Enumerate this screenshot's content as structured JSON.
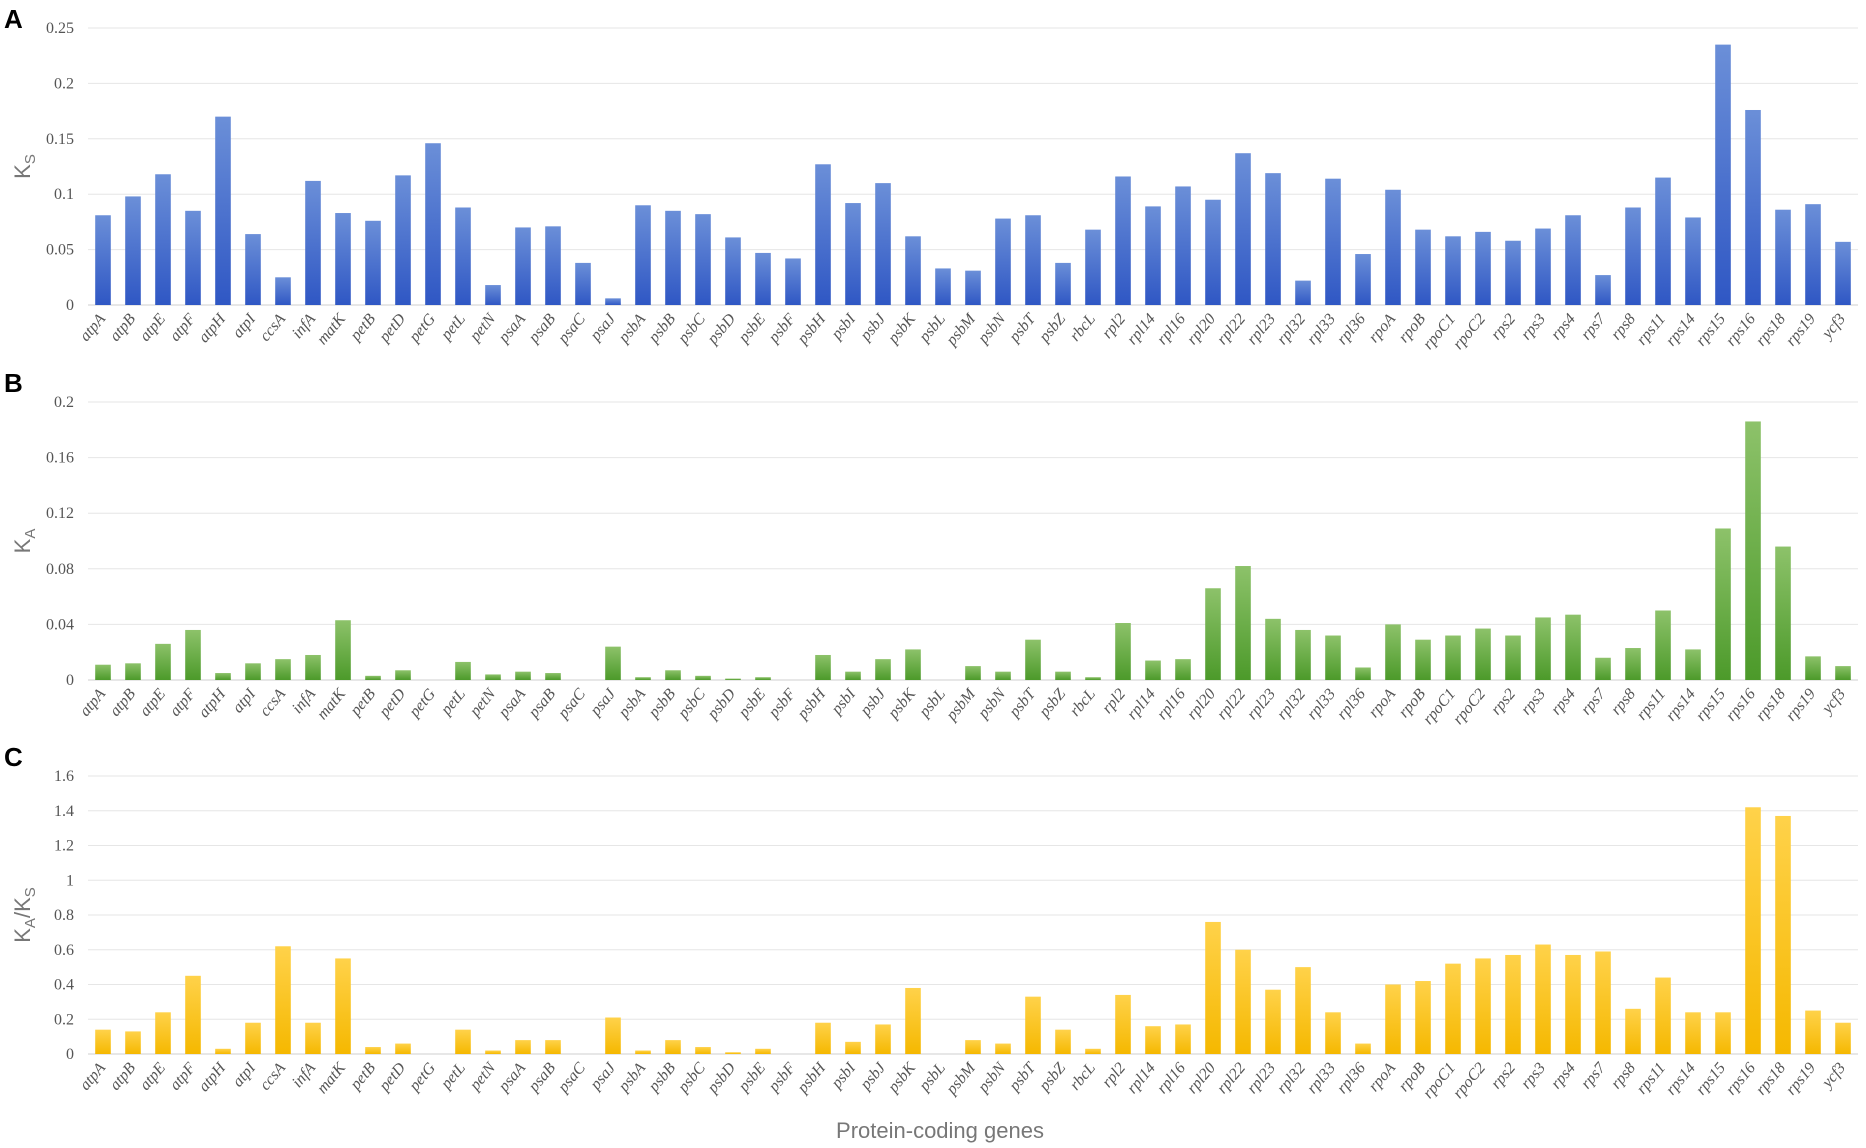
{
  "x_axis_label": "Protein-coding genes",
  "chart_data": [
    {
      "type": "bar",
      "panel": "A",
      "ylabel_main": "K",
      "ylabel_sub": "S",
      "ylim": [
        0,
        0.25
      ],
      "yticks": [
        "0",
        "0.05",
        "0.1",
        "0.15",
        "0.2",
        "0.25"
      ],
      "color_top": "#6b8fd8",
      "color_bottom": "#2f57c4",
      "grid": true,
      "categories": [
        "atpA",
        "atpB",
        "atpE",
        "atpF",
        "atpH",
        "atpI",
        "ccsA",
        "infA",
        "matK",
        "petB",
        "petD",
        "petG",
        "petL",
        "petN",
        "psaA",
        "psaB",
        "psaC",
        "psaJ",
        "psbA",
        "psbB",
        "psbC",
        "psbD",
        "psbE",
        "psbF",
        "psbH",
        "psbI",
        "psbJ",
        "psbK",
        "psbL",
        "psbM",
        "psbN",
        "psbT",
        "psbZ",
        "rbcL",
        "rpl2",
        "rpl14",
        "rpl16",
        "rpl20",
        "rpl22",
        "rpl23",
        "rpl32",
        "rpl33",
        "rpl36",
        "rpoA",
        "rpoB",
        "rpoC1",
        "rpoC2",
        "rps2",
        "rps3",
        "rps4",
        "rps7",
        "rps8",
        "rps11",
        "rps14",
        "rps15",
        "rps16",
        "rps18",
        "rps19",
        "ycf3"
      ],
      "values": [
        0.081,
        0.098,
        0.118,
        0.085,
        0.17,
        0.064,
        0.025,
        0.112,
        0.083,
        0.076,
        0.117,
        0.146,
        0.088,
        0.018,
        0.07,
        0.071,
        0.038,
        0.006,
        0.09,
        0.085,
        0.082,
        0.061,
        0.047,
        0.042,
        0.127,
        0.092,
        0.11,
        0.062,
        0.033,
        0.031,
        0.078,
        0.081,
        0.038,
        0.068,
        0.116,
        0.089,
        0.107,
        0.095,
        0.137,
        0.119,
        0.022,
        0.114,
        0.046,
        0.104,
        0.068,
        0.062,
        0.066,
        0.058,
        0.069,
        0.081,
        0.027,
        0.088,
        0.115,
        0.079,
        0.235,
        0.176,
        0.086,
        0.091,
        0.057
      ]
    },
    {
      "type": "bar",
      "panel": "B",
      "ylabel_main": "K",
      "ylabel_sub": "A",
      "ylim": [
        0,
        0.2
      ],
      "yticks": [
        "0",
        "0.04",
        "0.08",
        "0.12",
        "0.16",
        "0.2"
      ],
      "color_top": "#8dc26a",
      "color_bottom": "#4c9a2a",
      "grid": true,
      "categories": [
        "atpA",
        "atpB",
        "atpE",
        "atpF",
        "atpH",
        "atpI",
        "ccsA",
        "infA",
        "matK",
        "petB",
        "petD",
        "petG",
        "petL",
        "petN",
        "psaA",
        "psaB",
        "psaC",
        "psaJ",
        "psbA",
        "psbB",
        "psbC",
        "psbD",
        "psbE",
        "psbF",
        "psbH",
        "psbI",
        "psbJ",
        "psbK",
        "psbL",
        "psbM",
        "psbN",
        "psbT",
        "psbZ",
        "rbcL",
        "rpl2",
        "rpl14",
        "rpl16",
        "rpl20",
        "rpl22",
        "rpl23",
        "rpl32",
        "rpl33",
        "rpl36",
        "rpoA",
        "rpoB",
        "rpoC1",
        "rpoC2",
        "rps2",
        "rps3",
        "rps4",
        "rps7",
        "rps8",
        "rps11",
        "rps14",
        "rps15",
        "rps16",
        "rps18",
        "rps19",
        "ycf3"
      ],
      "values": [
        0.011,
        0.012,
        0.026,
        0.036,
        0.005,
        0.012,
        0.015,
        0.018,
        0.043,
        0.003,
        0.007,
        0.0,
        0.013,
        0.004,
        0.006,
        0.005,
        0.0,
        0.024,
        0.002,
        0.007,
        0.003,
        0.001,
        0.002,
        0.0,
        0.018,
        0.006,
        0.015,
        0.022,
        0.0,
        0.01,
        0.006,
        0.029,
        0.006,
        0.002,
        0.041,
        0.014,
        0.015,
        0.066,
        0.082,
        0.044,
        0.036,
        0.032,
        0.009,
        0.04,
        0.029,
        0.032,
        0.037,
        0.032,
        0.045,
        0.047,
        0.016,
        0.023,
        0.05,
        0.022,
        0.109,
        0.186,
        0.096,
        0.017,
        0.01
      ]
    },
    {
      "type": "bar",
      "panel": "C",
      "ylabel_main": "K",
      "ylabel_sub": "A",
      "ylabel_mid": "/K",
      "ylabel_sub2": "S",
      "ylim": [
        0,
        1.6
      ],
      "yticks": [
        "0",
        "0.2",
        "0.4",
        "0.6",
        "0.8",
        "1",
        "1.2",
        "1.4",
        "1.6"
      ],
      "color_top": "#ffd24a",
      "color_bottom": "#f5b800",
      "grid": true,
      "categories": [
        "atpA",
        "atpB",
        "atpE",
        "atpF",
        "atpH",
        "atpI",
        "ccsA",
        "infA",
        "matK",
        "petB",
        "petD",
        "petG",
        "petL",
        "petN",
        "psaA",
        "psaB",
        "psaC",
        "psaJ",
        "psbA",
        "psbB",
        "psbC",
        "psbD",
        "psbE",
        "psbF",
        "psbH",
        "psbI",
        "psbJ",
        "psbK",
        "psbL",
        "psbM",
        "psbN",
        "psbT",
        "psbZ",
        "rbcL",
        "rpl2",
        "rpl14",
        "rpl16",
        "rpl20",
        "rpl22",
        "rpl23",
        "rpl32",
        "rpl33",
        "rpl36",
        "rpoA",
        "rpoB",
        "rpoC1",
        "rpoC2",
        "rps2",
        "rps3",
        "rps4",
        "rps7",
        "rps8",
        "rps11",
        "rps14",
        "rps15",
        "rps16",
        "rps18",
        "rps19",
        "ycf3"
      ],
      "values": [
        0.14,
        0.13,
        0.24,
        0.45,
        0.03,
        0.18,
        0.62,
        0.18,
        0.55,
        0.04,
        0.06,
        0.0,
        0.14,
        0.02,
        0.08,
        0.08,
        0.0,
        0.21,
        0.02,
        0.08,
        0.04,
        0.01,
        0.03,
        0.0,
        0.18,
        0.07,
        0.17,
        0.38,
        0.0,
        0.08,
        0.06,
        0.33,
        0.14,
        0.03,
        0.34,
        0.16,
        0.17,
        0.76,
        0.6,
        0.37,
        0.5,
        0.24,
        0.06,
        0.4,
        0.42,
        0.52,
        0.55,
        0.57,
        0.63,
        0.57,
        0.59,
        0.26,
        0.44,
        0.24,
        0.24,
        1.42,
        1.37,
        0.25,
        0.18
      ]
    }
  ]
}
